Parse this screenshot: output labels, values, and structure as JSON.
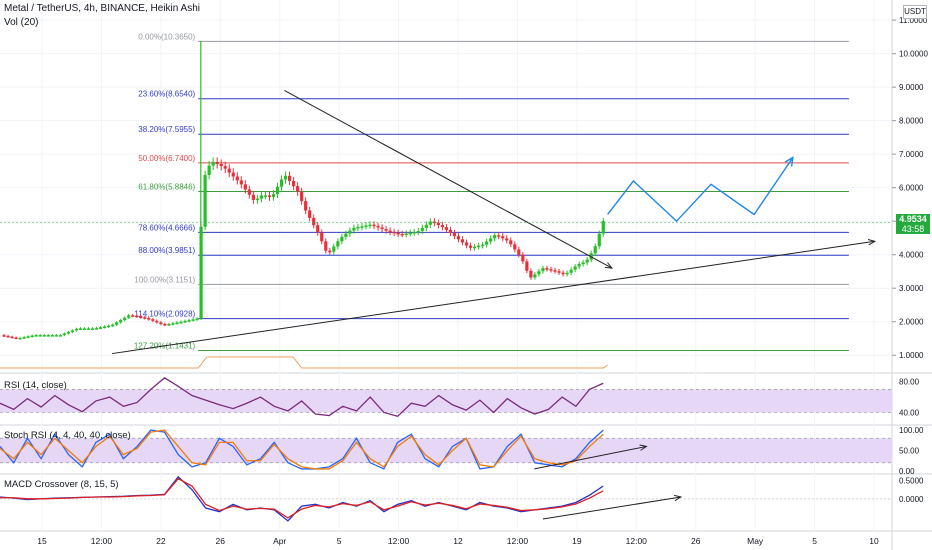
{
  "header": {
    "title": "Metal / TetherUS, 4h, BINANCE, Heikin Ashi",
    "volume_label": "Vol (20)",
    "currency": "USDT",
    "last_price": "4.9534",
    "countdown": "43:58"
  },
  "colors": {
    "up": "#26c026",
    "down": "#e8303a",
    "fib_blue": "#2f3bc6",
    "fib_red": "#e04a4a",
    "fib_green": "#3f9a3f",
    "fib_gray": "#9598a1",
    "projection": "#1e88e5",
    "rsi": "#7b2a7b",
    "stoch_k": "#2962ff",
    "stoch_d": "#f57c00",
    "macd": "#2333c8",
    "macd_signal": "#e02020",
    "band": "#e6d7f7",
    "tag_bg": "#22ab3c"
  },
  "chart_data": [
    {
      "type": "candlestick",
      "title": "Metal / TetherUS, 4h, BINANCE, Heikin Ashi",
      "ylim": [
        0.5,
        11.6
      ],
      "y_ticks": [
        "1.0000",
        "2.0000",
        "3.0000",
        "4.0000",
        "5.0000",
        "6.0000",
        "7.0000",
        "8.0000",
        "9.0000",
        "10.0000",
        "11.0000"
      ],
      "x_ticks": [
        "15",
        "12:00",
        "22",
        "26",
        "Apr",
        "5",
        "12:00",
        "12",
        "12:00",
        "19",
        "12:00",
        "26",
        "May",
        "5",
        "10"
      ],
      "fib_levels": [
        {
          "label": "0.00%(10.3650)",
          "ratio": 0.0,
          "value": 10.365
        },
        {
          "label": "23.60%(8.6540)",
          "ratio": 0.236,
          "value": 8.654
        },
        {
          "label": "38.20%(7.5955)",
          "ratio": 0.382,
          "value": 7.5955
        },
        {
          "label": "50.00%(6.7400)",
          "ratio": 0.5,
          "value": 6.74
        },
        {
          "label": "61.80%(5.8846)",
          "ratio": 0.618,
          "value": 5.8846
        },
        {
          "label": "78.60%(4.6666)",
          "ratio": 0.786,
          "value": 4.6666
        },
        {
          "label": "88.00%(3.9851)",
          "ratio": 0.88,
          "value": 3.9851
        },
        {
          "label": "100.00%(3.1151)",
          "ratio": 1.0,
          "value": 3.1151
        },
        {
          "label": "114.10%(2.0928)",
          "ratio": 1.141,
          "value": 2.0928
        },
        {
          "label": "127.20%(1.1431)",
          "ratio": 1.272,
          "value": 1.1431
        }
      ],
      "price_path": [
        [
          0,
          1.6
        ],
        [
          0.2,
          1.5
        ],
        [
          0.4,
          1.6
        ],
        [
          0.7,
          1.6
        ],
        [
          0.9,
          1.8
        ],
        [
          1.1,
          1.8
        ],
        [
          1.3,
          1.9
        ],
        [
          1.5,
          2.2
        ],
        [
          1.7,
          2.1
        ],
        [
          1.9,
          1.9
        ],
        [
          2.1,
          2.0
        ],
        [
          2.3,
          2.1
        ],
        [
          2.35,
          6.2
        ],
        [
          2.45,
          6.8
        ],
        [
          2.6,
          6.6
        ],
        [
          2.8,
          6.1
        ],
        [
          2.95,
          5.6
        ],
        [
          3.05,
          5.8
        ],
        [
          3.15,
          5.7
        ],
        [
          3.3,
          6.4
        ],
        [
          3.45,
          5.9
        ],
        [
          3.55,
          5.3
        ],
        [
          3.7,
          4.6
        ],
        [
          3.8,
          4.0
        ],
        [
          3.95,
          4.5
        ],
        [
          4.1,
          4.8
        ],
        [
          4.3,
          4.9
        ],
        [
          4.5,
          4.7
        ],
        [
          4.65,
          4.6
        ],
        [
          4.85,
          4.7
        ],
        [
          5.0,
          5.0
        ],
        [
          5.15,
          4.8
        ],
        [
          5.3,
          4.5
        ],
        [
          5.45,
          4.2
        ],
        [
          5.6,
          4.3
        ],
        [
          5.75,
          4.6
        ],
        [
          5.9,
          4.4
        ],
        [
          6.05,
          3.9
        ],
        [
          6.15,
          3.3
        ],
        [
          6.3,
          3.6
        ],
        [
          6.45,
          3.5
        ],
        [
          6.55,
          3.4
        ],
        [
          6.7,
          3.7
        ],
        [
          6.8,
          3.8
        ],
        [
          6.9,
          4.2
        ],
        [
          7.0,
          5.0
        ]
      ],
      "projection": [
        [
          7.05,
          5.2
        ],
        [
          7.35,
          6.2
        ],
        [
          7.85,
          5.0
        ],
        [
          8.25,
          6.1
        ],
        [
          8.75,
          5.2
        ],
        [
          9.2,
          6.9
        ]
      ],
      "trendlines": [
        {
          "from": [
            3.3,
            8.9
          ],
          "to": [
            7.1,
            3.6
          ]
        },
        {
          "from": [
            1.3,
            1.05
          ],
          "to": [
            10.15,
            4.4
          ]
        }
      ]
    },
    {
      "type": "line",
      "title": "RSI (14, close)",
      "ylim": [
        25,
        90
      ],
      "y_ticks": [
        "80.00",
        "40.00"
      ],
      "series": [
        {
          "values": [
            52,
            44,
            58,
            47,
            62,
            50,
            41,
            55,
            60,
            48,
            53,
            70,
            85,
            74,
            62,
            56,
            50,
            45,
            52,
            60,
            48,
            42,
            55,
            38,
            36,
            48,
            42,
            60,
            40,
            35,
            52,
            48,
            62,
            50,
            43,
            56,
            40,
            58,
            46,
            38,
            44,
            60,
            48,
            70,
            78
          ]
        }
      ]
    },
    {
      "type": "line",
      "title": "Stoch RSI (4, 4, 40, 40, close)",
      "ylim": [
        -5,
        110
      ],
      "y_ticks": [
        "100.00",
        "50.00",
        "0.00"
      ],
      "series": [
        {
          "values": [
            60,
            20,
            80,
            30,
            90,
            40,
            10,
            70,
            90,
            30,
            60,
            100,
            95,
            40,
            10,
            20,
            80,
            60,
            15,
            30,
            70,
            20,
            5,
            5,
            10,
            30,
            80,
            20,
            5,
            70,
            90,
            30,
            10,
            60,
            80,
            5,
            10,
            60,
            90,
            20,
            15,
            10,
            30,
            70,
            100
          ]
        },
        {
          "values": [
            55,
            30,
            70,
            40,
            80,
            50,
            20,
            60,
            85,
            40,
            55,
            95,
            100,
            60,
            20,
            15,
            70,
            70,
            25,
            25,
            65,
            30,
            10,
            5,
            5,
            25,
            70,
            30,
            10,
            60,
            85,
            40,
            15,
            50,
            80,
            15,
            10,
            50,
            85,
            30,
            20,
            15,
            25,
            60,
            90
          ]
        }
      ]
    },
    {
      "type": "line",
      "title": "MACD Crossover (8, 15, 5)",
      "ylim": [
        -0.85,
        0.65
      ],
      "y_ticks": [
        "0.5000",
        "0.0000"
      ],
      "series": [
        {
          "values": [
            0.05,
            0.02,
            -0.02,
            0.0,
            0.02,
            0.03,
            0.04,
            0.05,
            0.06,
            0.07,
            0.09,
            0.1,
            0.12,
            0.6,
            0.25,
            -0.25,
            -0.35,
            -0.15,
            -0.3,
            -0.25,
            -0.3,
            -0.6,
            -0.2,
            -0.15,
            -0.25,
            -0.1,
            -0.2,
            -0.05,
            -0.35,
            -0.15,
            -0.05,
            -0.2,
            -0.1,
            -0.2,
            -0.3,
            -0.1,
            -0.2,
            -0.25,
            -0.35,
            -0.3,
            -0.25,
            -0.2,
            -0.1,
            0.1,
            0.35
          ]
        },
        {
          "values": [
            0.03,
            0.03,
            0.0,
            0.0,
            0.01,
            0.02,
            0.04,
            0.05,
            0.05,
            0.06,
            0.08,
            0.09,
            0.11,
            0.55,
            0.35,
            -0.15,
            -0.32,
            -0.2,
            -0.28,
            -0.26,
            -0.28,
            -0.52,
            -0.28,
            -0.18,
            -0.22,
            -0.13,
            -0.18,
            -0.08,
            -0.3,
            -0.2,
            -0.08,
            -0.17,
            -0.12,
            -0.18,
            -0.27,
            -0.14,
            -0.18,
            -0.23,
            -0.32,
            -0.3,
            -0.27,
            -0.22,
            -0.14,
            0.02,
            0.22
          ]
        }
      ]
    }
  ]
}
